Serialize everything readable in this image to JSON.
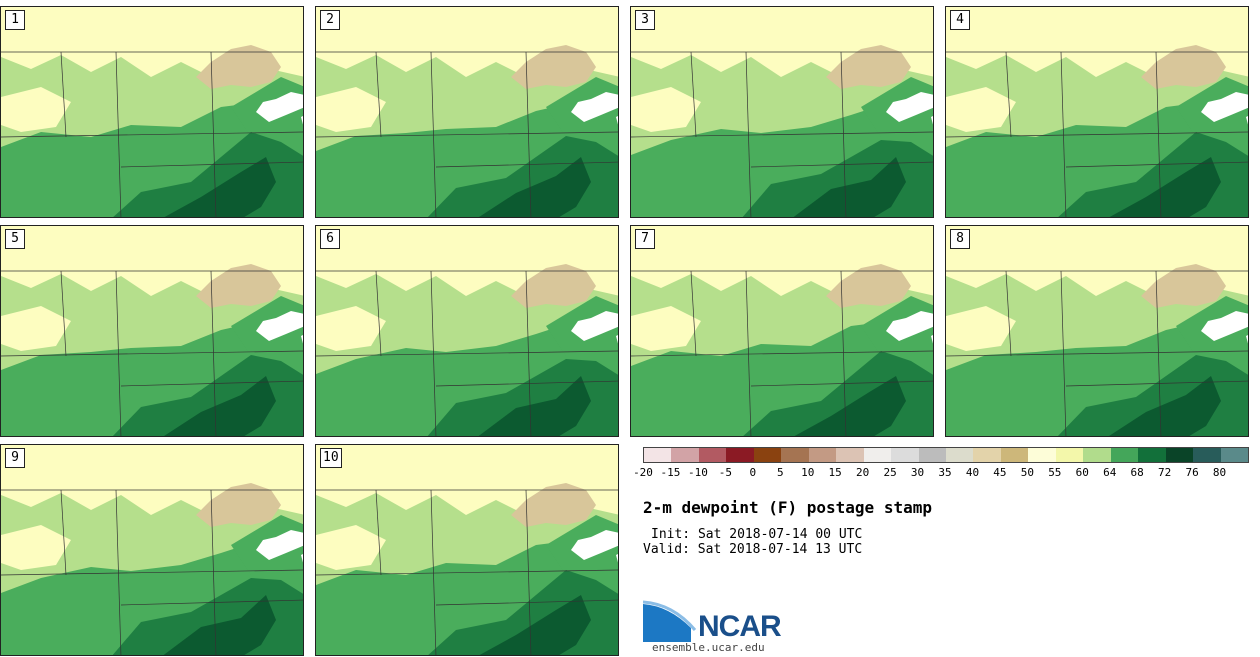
{
  "panels": [
    {
      "label": "1",
      "top_left": {
        "x": 0,
        "y": 6
      }
    },
    {
      "label": "2"
    },
    {
      "label": "3"
    },
    {
      "label": "4"
    },
    {
      "label": "5"
    },
    {
      "label": "6"
    },
    {
      "label": "7"
    },
    {
      "label": "8"
    },
    {
      "label": "9"
    },
    {
      "label": "10"
    }
  ],
  "colorbar": {
    "colors": [
      "#f3e4e6",
      "#d2a3a6",
      "#b25a62",
      "#8b1a24",
      "#8a4210",
      "#a57452",
      "#c39a84",
      "#dcc3b4",
      "#f0eeec",
      "#dcdcdc",
      "#bcbcbc",
      "#dcdccc",
      "#e3d3aa",
      "#cdb77a",
      "#fdfdd8",
      "#f3f7aa",
      "#b1dc8c",
      "#44a65a",
      "#12703a",
      "#0a4428",
      "#285c5a",
      "#5a8a8a"
    ],
    "tick_labels": [
      "-20",
      "-15",
      "-10",
      "-5",
      "0",
      "5",
      "10",
      "15",
      "20",
      "25",
      "30",
      "35",
      "40",
      "45",
      "50",
      "55",
      "60",
      "64",
      "68",
      "72",
      "76",
      "80"
    ]
  },
  "title": "2-m dewpoint (F) postage stamp",
  "init": "Init: Sat 2018-07-14 00 UTC",
  "valid": "Valid: Sat 2018-07-14 13 UTC",
  "logo_text": "NCAR",
  "site": "ensemble.ucar.edu",
  "map_colors": {
    "c55": "#fdfdc0",
    "c60": "#b5df8c",
    "c64": "#4aad5c",
    "c68": "#1f7f42",
    "c72": "#0c5a30",
    "lake": "#ffffff",
    "superior_land": "#d8c69a"
  }
}
